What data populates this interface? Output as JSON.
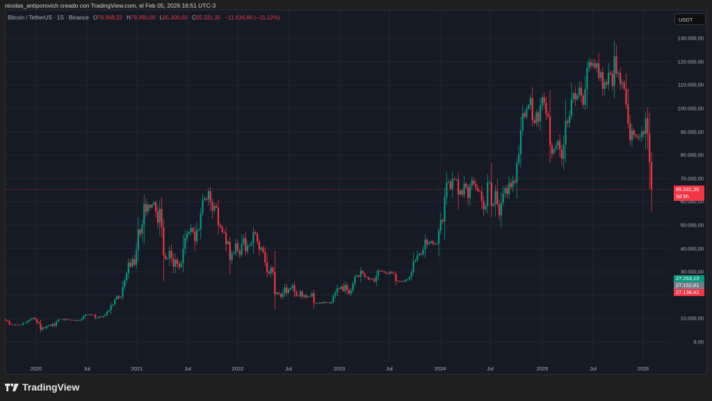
{
  "credit": "nicolas_antiporovich creado con TradingView.com, el Feb 05, 2026 16:51 UTC-3",
  "legend": {
    "symbol": "Bitcoin / TetherUS · 1S · Binance",
    "o_label": "O",
    "o_value": "76.968,22",
    "h_label": "H",
    "h_value": "79.360,00",
    "l_label": "L",
    "l_value": "65.300,00",
    "c_label": "C",
    "c_value": "65.331,35",
    "change": "−11.636,86 (−15,12%)"
  },
  "currency_button": "USDT",
  "price_tags": {
    "last_price": "65.331,35",
    "countdown": "3d 5h",
    "tag_green": "27.263,13",
    "tag_gray": "27.152,81",
    "tag_red": "27.138,42"
  },
  "colors": {
    "up": "#089981",
    "down": "#f23645",
    "background": "#161a25",
    "grid": "#232632",
    "gray_tag": "#787b86"
  },
  "logo_text": "TradingView",
  "chart_data": {
    "type": "candlestick",
    "title": "Bitcoin / TetherUS · 1S · Binance",
    "interval": "1W",
    "xlabel": "",
    "ylabel": "USDT",
    "ylim": [
      0,
      130000
    ],
    "y_ticks": [
      "0,00",
      "10.000,00",
      "20.000,00",
      "30.000,00",
      "40.000,00",
      "50.000,00",
      "60.000,00",
      "70.000,00",
      "80.000,00",
      "90.000,00",
      "100.000,00",
      "110.000,00",
      "120.000,00",
      "130.000,00"
    ],
    "x_ticks": [
      "2020",
      "Jul",
      "2021",
      "Jul",
      "2022",
      "Jul",
      "2023",
      "Jul",
      "2024",
      "Jul",
      "2025",
      "Jul",
      "2026"
    ],
    "last_price": 65331.35,
    "weekly_close_k": [
      9.2,
      8.8,
      7.6,
      7.4,
      7.2,
      7.5,
      7.3,
      7.2,
      7.4,
      8.1,
      8.2,
      8.7,
      9.3,
      9.9,
      10.3,
      9.7,
      8.6,
      7.9,
      5.3,
      6.2,
      5.9,
      6.8,
      7.2,
      6.8,
      7.7,
      7.0,
      8.7,
      9.5,
      9.6,
      9.7,
      9.3,
      9.7,
      9.6,
      9.4,
      9.3,
      9.4,
      9.1,
      9.2,
      9.3,
      9.9,
      11.1,
      11.7,
      11.6,
      11.9,
      11.6,
      11.4,
      10.3,
      10.4,
      10.9,
      10.7,
      11.1,
      11.6,
      13.0,
      13.6,
      15.5,
      16.0,
      18.2,
      19.6,
      18.8,
      19.2,
      23.5,
      26.3,
      29.3,
      34.0,
      32.3,
      35.5,
      33.1,
      39.2,
      48.2,
      46.3,
      50.2,
      59.0,
      55.8,
      58.7,
      57.4,
      58.8,
      59.8,
      55.9,
      51.1,
      57.0,
      49.1,
      37.0,
      35.6,
      35.7,
      39.0,
      35.8,
      32.2,
      35.2,
      33.5,
      32.0,
      33.8,
      39.9,
      44.4,
      46.3,
      47.0,
      48.8,
      47.2,
      43.1,
      47.8,
      48.2,
      55.0,
      60.9,
      61.5,
      61.0,
      64.6,
      59.9,
      56.2,
      58.3,
      57.5,
      50.1,
      49.4,
      47.1,
      46.7,
      41.9,
      43.0,
      35.1,
      37.7,
      38.2,
      42.2,
      39.1,
      37.3,
      42.1,
      44.4,
      38.9,
      41.2,
      41.5,
      42.3,
      47.0,
      46.3,
      43.0,
      39.5,
      40.4,
      38.5,
      34.0,
      30.1,
      29.3,
      31.8,
      29.9,
      20.4,
      21.1,
      20.6,
      19.3,
      20.8,
      23.3,
      21.0,
      22.6,
      23.2,
      24.3,
      21.5,
      19.8,
      19.7,
      21.6,
      19.4,
      20.0,
      19.1,
      19.5,
      19.6,
      20.8,
      16.7,
      16.4,
      16.5,
      16.9,
      16.5,
      17.1,
      16.8,
      16.9,
      16.6,
      17.1,
      19.9,
      21.1,
      23.0,
      22.8,
      23.8,
      21.9,
      24.4,
      22.3,
      20.6,
      22.1,
      25.0,
      28.0,
      28.5,
      27.9,
      30.4,
      29.4,
      28.0,
      27.7,
      26.8,
      27.1,
      26.9,
      25.9,
      28.3,
      30.5,
      30.3,
      30.2,
      29.8,
      29.4,
      29.1,
      30.0,
      29.5,
      29.2,
      26.1,
      26.0,
      25.8,
      26.0,
      25.9,
      26.6,
      26.9,
      27.9,
      29.9,
      34.5,
      35.0,
      37.1,
      37.8,
      37.7,
      39.5,
      43.8,
      41.9,
      42.5,
      43.2,
      42.1,
      41.8,
      42.1,
      47.7,
      52.2,
      51.6,
      62.0,
      68.3,
      68.4,
      65.5,
      69.7,
      69.4,
      69.6,
      63.1,
      64.9,
      63.0,
      67.8,
      66.3,
      61.6,
      66.9,
      69.2,
      67.7,
      66.0,
      64.6,
      64.4,
      60.3,
      56.8,
      58.2,
      68.2,
      68.3,
      58.2,
      58.9,
      64.5,
      58.9,
      54.2,
      59.6,
      63.6,
      65.8,
      63.3,
      68.0,
      66.3,
      69.0,
      68.3,
      76.6,
      80.4,
      90.6,
      98.0,
      96.4,
      99.9,
      101.3,
      104.5,
      94.9,
      93.7,
      98.3,
      94.5,
      101.3,
      104.8,
      102.4,
      97.7,
      96.5,
      84.3,
      80.7,
      82.6,
      84.0,
      86.1,
      82.4,
      78.4,
      84.5,
      94.6,
      93.8,
      96.9,
      104.1,
      106.5,
      103.8,
      105.7,
      108.9,
      105.5,
      101.5,
      108.3,
      117.5,
      119.8,
      118.2,
      119.4,
      117.4,
      119.3,
      113.1,
      115.5,
      108.3,
      111.2,
      110.2,
      115.3,
      114.8,
      109.6,
      122.3,
      114.9,
      115.3,
      110.5,
      111.1,
      108.4,
      101.6,
      93.6,
      86.5,
      90.6,
      88.7,
      88.0,
      87.4,
      87.6,
      90.2,
      89.0,
      95.8,
      89.2,
      77.0,
      65.3
    ]
  }
}
